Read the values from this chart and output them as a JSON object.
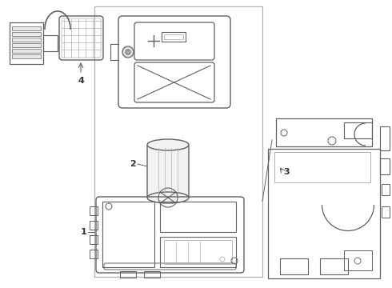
{
  "bg_color": "#ffffff",
  "lc": "#b0b0b0",
  "dc": "#606060",
  "mc": "#888888",
  "fig_width": 4.9,
  "fig_height": 3.6,
  "dpi": 100
}
